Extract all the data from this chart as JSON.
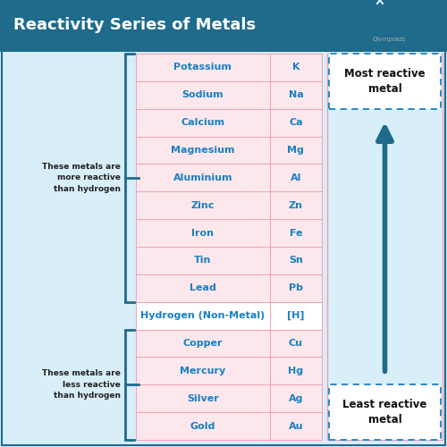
{
  "title": "Reactivity Series of Metals",
  "title_color": "#ffffff",
  "title_bg_color": "#1e6b8c",
  "header_bg": "#1e6b8c",
  "outer_bg": "#d8eef8",
  "elements": [
    {
      "name": "Potassium",
      "symbol": "K",
      "row_type": "more"
    },
    {
      "name": "Sodium",
      "symbol": "Na",
      "row_type": "more"
    },
    {
      "name": "Calcium",
      "symbol": "Ca",
      "row_type": "more"
    },
    {
      "name": "Magnesium",
      "symbol": "Mg",
      "row_type": "more"
    },
    {
      "name": "Aluminium",
      "symbol": "Al",
      "row_type": "more"
    },
    {
      "name": "Zinc",
      "symbol": "Zn",
      "row_type": "more"
    },
    {
      "name": "Iron",
      "symbol": "Fe",
      "row_type": "more"
    },
    {
      "name": "Tin",
      "symbol": "Sn",
      "row_type": "more"
    },
    {
      "name": "Lead",
      "symbol": "Pb",
      "row_type": "more"
    },
    {
      "name": "Hydrogen (Non-Metal)",
      "symbol": "[H]",
      "row_type": "hydrogen"
    },
    {
      "name": "Copper",
      "symbol": "Cu",
      "row_type": "less"
    },
    {
      "name": "Mercury",
      "symbol": "Hg",
      "row_type": "less"
    },
    {
      "name": "Silver",
      "symbol": "Ag",
      "row_type": "less"
    },
    {
      "name": "Gold",
      "symbol": "Au",
      "row_type": "less"
    }
  ],
  "row_bg_pink": "#fce8ec",
  "row_border_color": "#f4a0b0",
  "hydrogen_bg": "#ffffff",
  "text_blue": "#1a80c4",
  "label_color": "#222222",
  "label_more": "These metals are\nmore reactive\nthan hydrogen",
  "label_less": "These metals are\nless reactive\nthan hydrogen",
  "most_reactive_text": "Most reactive\nmetal",
  "least_reactive_text": "Least reactive\nmetal",
  "reactive_label_color": "#111111",
  "arrow_color": "#1e6b8c",
  "bracket_color": "#1e6b8c",
  "dashed_border_color": "#1a80c4",
  "white": "#ffffff"
}
